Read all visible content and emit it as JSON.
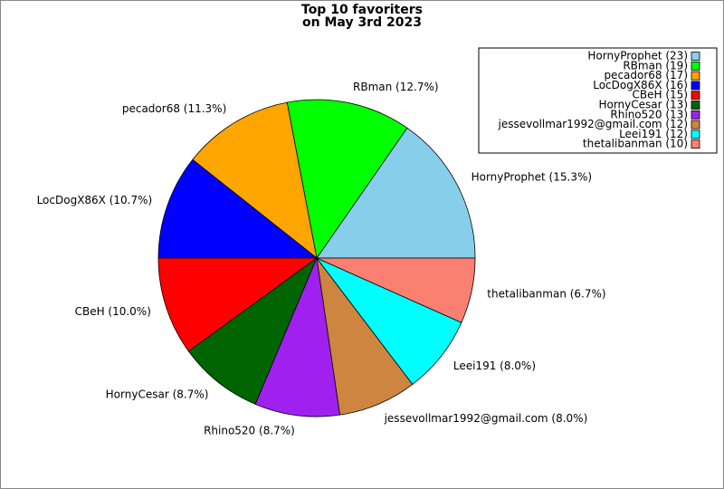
{
  "chart_data": {
    "type": "pie",
    "title": "Top 10 favoriters",
    "subtitle": "on May 3rd 2023",
    "categories": [
      "HornyProphet",
      "RBman",
      "pecador68",
      "LocDogX86X",
      "CBeH",
      "HornyCesar",
      "Rhino520",
      "jessevollmar1992@gmail.com",
      "Leei191",
      "thetalibanman"
    ],
    "values": [
      23,
      19,
      17,
      16,
      15,
      13,
      13,
      12,
      12,
      10
    ],
    "slice_labels": [
      "HornyProphet (15.3%)",
      "RBman (12.7%)",
      "pecador68 (11.3%)",
      "LocDogX86X (10.7%)",
      "CBeH (10.0%)",
      "HornyCesar (8.7%)",
      "Rhino520 (8.7%)",
      "jessevollmar1992@gmail.com (8.0%)",
      "Leei191 (8.0%)",
      "thetalibanman (6.7%)"
    ],
    "legend_labels": [
      "HornyProphet (23)",
      "RBman (19)",
      "pecador68 (17)",
      "LocDogX86X (16)",
      "CBeH (15)",
      "HornyCesar (13)",
      "Rhino520 (13)",
      "jessevollmar1992@gmail.com (12)",
      "Leei191 (12)",
      "thetalibanman (10)"
    ],
    "colors": [
      "#87ceeb",
      "#00ff00",
      "#ffa500",
      "#0000ff",
      "#ff0000",
      "#006400",
      "#a020f0",
      "#cd853f",
      "#00ffff",
      "#fa8072"
    ],
    "legend": "upper right"
  }
}
